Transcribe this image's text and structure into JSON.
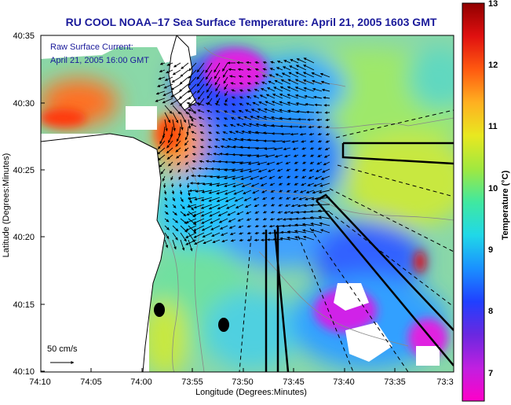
{
  "title": "RU COOL  NOAA–17  Sea Surface Temperature:  April 21, 2005 1603 GMT",
  "legend": {
    "line1": "Raw Surface Current:",
    "line2": "April 21, 2005 16:00 GMT"
  },
  "axes": {
    "x_title": "Longitude (Degrees:Minutes)",
    "y_title": "Latitude (Degrees:Minutes)",
    "x_ticks": [
      "74:10",
      "74:05",
      "74:00",
      "73:55",
      "73:50",
      "73:45",
      "73:40",
      "73:35",
      "73:3"
    ],
    "y_ticks": [
      "40:35",
      "40:30",
      "40:25",
      "40:20",
      "40:15",
      "40:10"
    ]
  },
  "colorbar": {
    "title": "Temperature (°C)",
    "ticks": [
      "13",
      "12",
      "11",
      "10",
      "9",
      "8",
      "7"
    ],
    "min": 6.4,
    "max": 13,
    "colors": [
      "#ff00c8",
      "#c020e0",
      "#6a28e0",
      "#2040ff",
      "#1a90ff",
      "#20d8e8",
      "#40e8a0",
      "#a0e840",
      "#e8e820",
      "#ffb020",
      "#ff5a10",
      "#e01010",
      "#900000"
    ]
  },
  "scale": {
    "label": "50 cm/s"
  }
}
